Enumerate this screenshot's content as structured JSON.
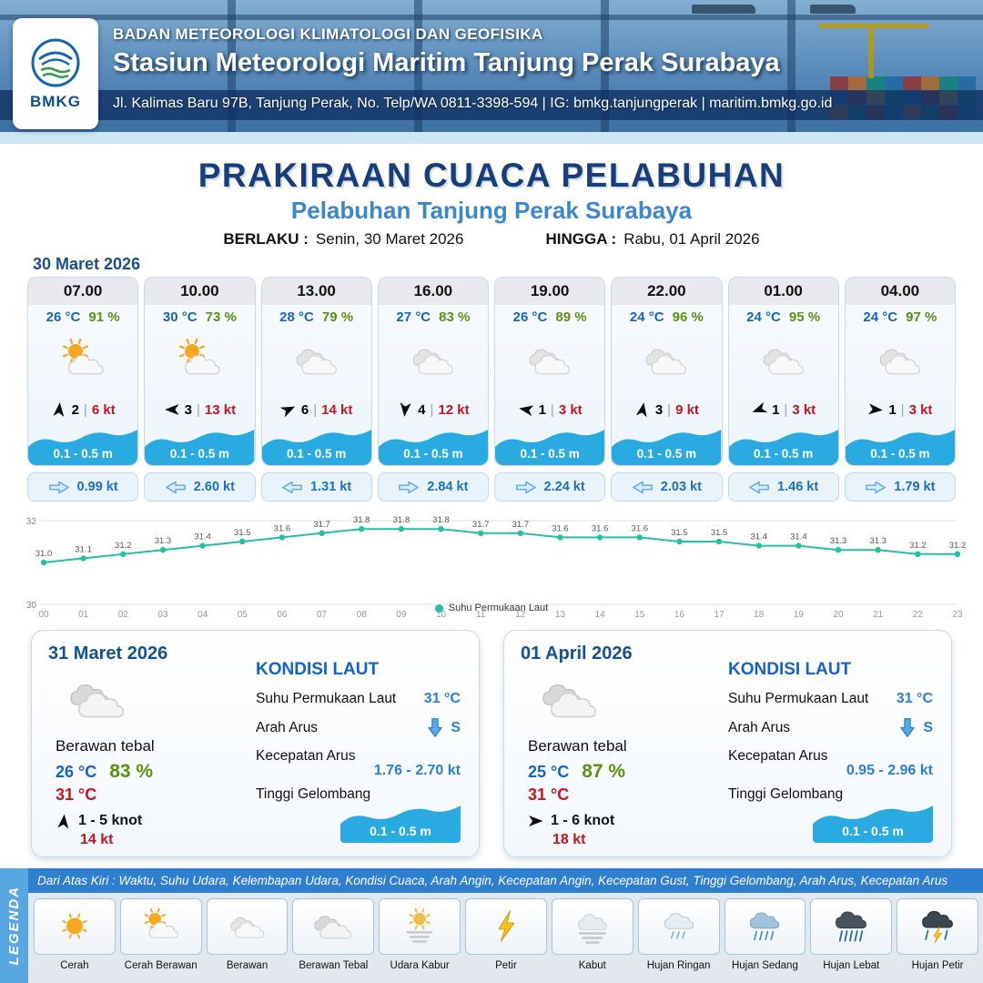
{
  "header": {
    "logo": "BMKG",
    "org_line": "BADAN METEOROLOGI KLIMATOLOGI DAN GEOFISIKA",
    "station_line": "Stasiun Meteorologi Maritim Tanjung Perak Surabaya",
    "address_line": "Jl. Kalimas Baru 97B, Tanjung Perak, No. Telp/WA 0811-3398-594 | IG: bmkg.tanjungperak | maritim.bmkg.go.id"
  },
  "title": {
    "main": "PRAKIRAAN CUACA PELABUHAN",
    "subtitle": "Pelabuhan Tanjung Perak Surabaya",
    "berlaku_label": "BERLAKU :",
    "berlaku_value": "Senin, 30 Maret 2026",
    "hingga_label": "HINGGA :",
    "hingga_value": "Rabu, 01 April 2026"
  },
  "hourly_section": {
    "date_label": "30 Maret 2026",
    "sep": "|",
    "cards": [
      {
        "time": "07.00",
        "temp": "26 °C",
        "humidity": "91 %",
        "weather_icon": "cerah-berawan",
        "wind_dir_deg": 5,
        "wind_speed": "2",
        "gust": "6 kt",
        "wave_height": "0.1 - 0.5 m",
        "current_speed": "0.99 kt",
        "current_dir": "right"
      },
      {
        "time": "10.00",
        "temp": "30 °C",
        "humidity": "73 %",
        "weather_icon": "cerah-berawan",
        "wind_dir_deg": 270,
        "wind_speed": "3",
        "gust": "13 kt",
        "wave_height": "0.1 - 0.5 m",
        "current_speed": "2.60 kt",
        "current_dir": "left"
      },
      {
        "time": "13.00",
        "temp": "28 °C",
        "humidity": "79 %",
        "weather_icon": "berawan",
        "wind_dir_deg": 65,
        "wind_speed": "6",
        "gust": "14 kt",
        "wave_height": "0.1 - 0.5 m",
        "current_speed": "1.31 kt",
        "current_dir": "left"
      },
      {
        "time": "16.00",
        "temp": "27 °C",
        "humidity": "83 %",
        "weather_icon": "berawan",
        "wind_dir_deg": 185,
        "wind_speed": "4",
        "gust": "12 kt",
        "wave_height": "0.1 - 0.5 m",
        "current_speed": "2.84 kt",
        "current_dir": "right"
      },
      {
        "time": "19.00",
        "temp": "26 °C",
        "humidity": "89 %",
        "weather_icon": "berawan",
        "wind_dir_deg": 280,
        "wind_speed": "1",
        "gust": "3 kt",
        "wave_height": "0.1 - 0.5 m",
        "current_speed": "2.24 kt",
        "current_dir": "right"
      },
      {
        "time": "22.00",
        "temp": "24 °C",
        "humidity": "96 %",
        "weather_icon": "berawan",
        "wind_dir_deg": 10,
        "wind_speed": "3",
        "gust": "9 kt",
        "wave_height": "0.1 - 0.5 m",
        "current_speed": "2.03 kt",
        "current_dir": "left"
      },
      {
        "time": "01.00",
        "temp": "24 °C",
        "humidity": "95 %",
        "weather_icon": "berawan",
        "wind_dir_deg": 250,
        "wind_speed": "1",
        "gust": "3 kt",
        "wave_height": "0.1 - 0.5 m",
        "current_speed": "1.46 kt",
        "current_dir": "left"
      },
      {
        "time": "04.00",
        "temp": "24 °C",
        "humidity": "97 %",
        "weather_icon": "berawan",
        "wind_dir_deg": 95,
        "wind_speed": "1",
        "gust": "3 kt",
        "wave_height": "0.1 - 0.5 m",
        "current_speed": "1.79 kt",
        "current_dir": "right"
      }
    ]
  },
  "chart_data": {
    "type": "line",
    "x": [
      "00",
      "01",
      "02",
      "03",
      "04",
      "05",
      "06",
      "07",
      "08",
      "09",
      "10",
      "11",
      "12",
      "13",
      "14",
      "15",
      "16",
      "17",
      "18",
      "19",
      "20",
      "21",
      "22",
      "23"
    ],
    "series": [
      {
        "name": "Suhu Permukaan Laut",
        "color": "#26bfa6",
        "values": [
          31.0,
          31.1,
          31.2,
          31.3,
          31.4,
          31.5,
          31.6,
          31.7,
          31.8,
          31.8,
          31.8,
          31.7,
          31.7,
          31.6,
          31.6,
          31.6,
          31.5,
          31.5,
          31.4,
          31.4,
          31.3,
          31.3,
          31.2,
          31.2
        ]
      }
    ],
    "ylim": [
      30,
      32
    ],
    "yticks": [
      30,
      32
    ],
    "grid": true,
    "legend_position": "bottom"
  },
  "daily_cards": [
    {
      "date": "31 Maret 2026",
      "weather_icon": "berawan-tebal",
      "condition": "Berawan tebal",
      "temp_min": "26 °C",
      "humidity": "83 %",
      "temp_max": "31 °C",
      "wind_dir_deg": 5,
      "wind_range": "1 - 5 knot",
      "gust": "14 kt",
      "sea": {
        "heading": "KONDISI LAUT",
        "sst_label": "Suhu Permukaan Laut",
        "sst_value": "31 °C",
        "current_dir_label": "Arah Arus",
        "current_dir_value": "S",
        "current_speed_label": "Kecepatan Arus",
        "current_speed_value": "1.76 - 2.70 kt",
        "wave_label": "Tinggi Gelombang",
        "wave_value": "0.1 - 0.5 m"
      }
    },
    {
      "date": "01 April 2026",
      "weather_icon": "berawan-tebal",
      "condition": "Berawan tebal",
      "temp_min": "25 °C",
      "humidity": "87 %",
      "temp_max": "31 °C",
      "wind_dir_deg": 90,
      "wind_range": "1 - 6 knot",
      "gust": "18 kt",
      "sea": {
        "heading": "KONDISI LAUT",
        "sst_label": "Suhu Permukaan Laut",
        "sst_value": "31 °C",
        "current_dir_label": "Arah Arus",
        "current_dir_value": "S",
        "current_speed_label": "Kecepatan Arus",
        "current_speed_value": "0.95 - 2.96 kt",
        "wave_label": "Tinggi Gelombang",
        "wave_value": "0.1 - 0.5 m"
      }
    }
  ],
  "legend": {
    "title": "LEGENDA",
    "note": "Dari Atas Kiri : Waktu, Suhu Udara, Kelembapan Udara, Kondisi Cuaca, Arah Angin, Kecepatan Angin, Kecepatan Gust, Tinggi Gelombang, Arah Arus, Kecepatan Arus",
    "items": [
      {
        "label": "Cerah",
        "icon": "cerah"
      },
      {
        "label": "Cerah Berawan",
        "icon": "cerah-berawan"
      },
      {
        "label": "Berawan",
        "icon": "berawan"
      },
      {
        "label": "Berawan Tebal",
        "icon": "berawan-tebal"
      },
      {
        "label": "Udara Kabur",
        "icon": "udara-kabur"
      },
      {
        "label": "Petir",
        "icon": "petir"
      },
      {
        "label": "Kabut",
        "icon": "kabut"
      },
      {
        "label": "Hujan Ringan",
        "icon": "hujan-ringan"
      },
      {
        "label": "Hujan Sedang",
        "icon": "hujan-sedang"
      },
      {
        "label": "Hujan Lebat",
        "icon": "hujan-lebat"
      },
      {
        "label": "Hujan Petir",
        "icon": "hujan-petir"
      }
    ]
  },
  "colors": {
    "temp_blue": "#1464c8",
    "humidity_green": "#5d9110",
    "gust_red": "#c4161c",
    "wave_blue": "#29abe2",
    "accent_blue": "#2e7fd0",
    "title_navy": "#173e7c",
    "subtitle_blue": "#3c87c9",
    "chart_teal": "#26bfa6"
  }
}
